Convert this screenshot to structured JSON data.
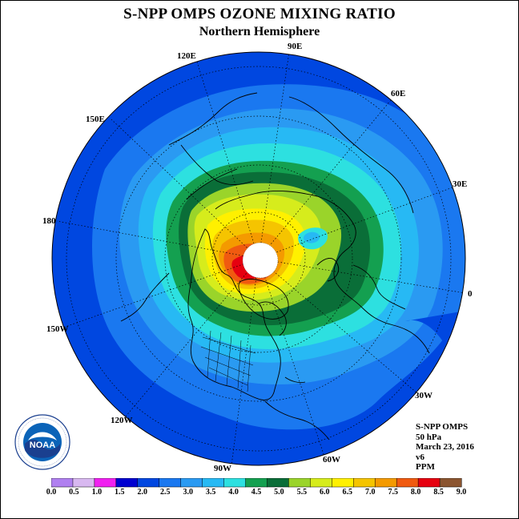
{
  "title": "S-NPP OMPS OZONE MIXING RATIO",
  "subtitle": "Northern Hemisphere",
  "lon_labels": [
    "90E",
    "60E",
    "30E",
    "0",
    "30W",
    "60W",
    "90W",
    "120W",
    "150W",
    "180",
    "150E",
    "120E"
  ],
  "info": [
    "S-NPP OMPS",
    "50 hPa",
    "March 23, 2016",
    "v6",
    "PPM"
  ],
  "logo": {
    "text": "NOAA"
  },
  "color_scale": {
    "tick_labels": [
      "0.0",
      "0.5",
      "1.0",
      "1.5",
      "2.0",
      "2.5",
      "3.0",
      "3.5",
      "4.0",
      "4.5",
      "5.0",
      "5.5",
      "6.0",
      "6.5",
      "7.0",
      "7.5",
      "8.0",
      "8.5",
      "9.0"
    ],
    "colors": [
      "#b080f0",
      "#d8b8f0",
      "#f020f0",
      "#0000d0",
      "#0047e0",
      "#1a78f0",
      "#2a9af2",
      "#27b9f4",
      "#2de0e0",
      "#14a050",
      "#0a6e38",
      "#9ad42a",
      "#d6ec1c",
      "#fff000",
      "#f5c400",
      "#f49a00",
      "#f05a10",
      "#e60010",
      "#8b5530"
    ]
  }
}
